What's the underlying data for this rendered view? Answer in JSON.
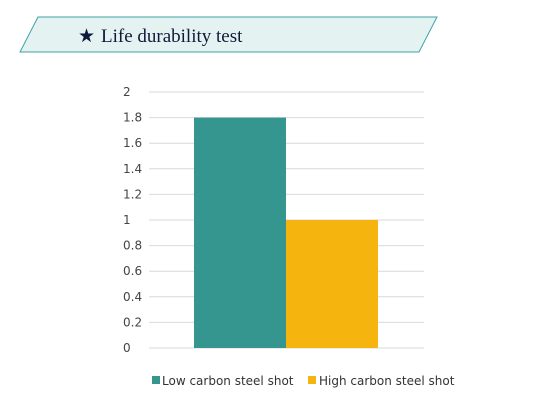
{
  "header": {
    "title": "Life durability test",
    "star_glyph": "★",
    "banner_fill": "#e4f2f1",
    "banner_border": "#3fa3a7"
  },
  "chart_data": {
    "type": "bar",
    "title": "",
    "xlabel": "",
    "ylabel": "",
    "categories": [
      ""
    ],
    "ylim": [
      0,
      2
    ],
    "yticks": [
      "0",
      "0.2",
      "0.4",
      "0.6",
      "0.8",
      "1",
      "1.2",
      "1.4",
      "1.6",
      "1.8",
      "2"
    ],
    "grid": true,
    "legend_position": "bottom",
    "series": [
      {
        "name": "Low carbon steel shot",
        "values": [
          1.8
        ],
        "color": "#35958f"
      },
      {
        "name": "High carbon steel shot",
        "values": [
          1.0
        ],
        "color": "#f5b50e"
      }
    ]
  }
}
